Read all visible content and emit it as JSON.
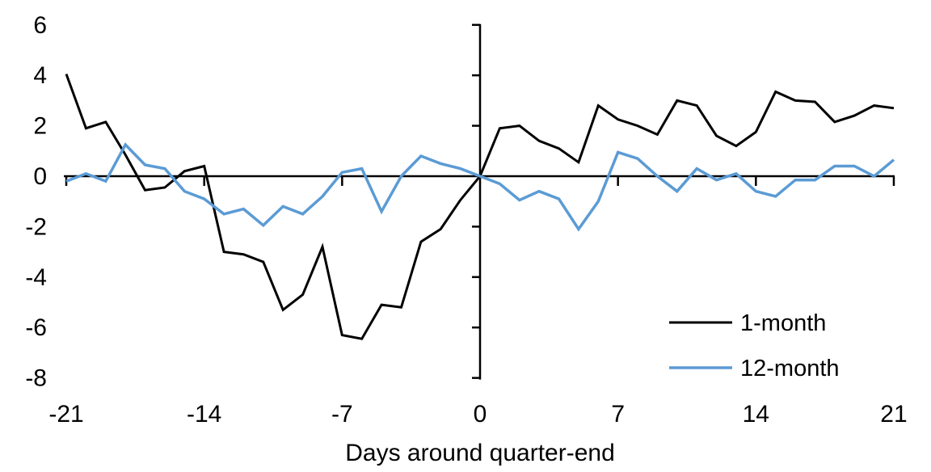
{
  "chart_data": {
    "type": "line",
    "title": "",
    "xlabel": "Days around quarter-end",
    "ylabel": "",
    "xlim": [
      -21,
      21
    ],
    "ylim": [
      -8,
      6
    ],
    "xticks": [
      -21,
      -14,
      -7,
      0,
      7,
      14,
      21
    ],
    "yticks": [
      6,
      4,
      2,
      0,
      -2,
      -4,
      -6,
      -8
    ],
    "grid": false,
    "legend_position": "bottom-right",
    "axis_color": "#000000",
    "x": [
      -21,
      -20,
      -19,
      -18,
      -17,
      -16,
      -15,
      -14,
      -13,
      -12,
      -11,
      -10,
      -9,
      -8,
      -7,
      -6,
      -5,
      -4,
      -3,
      -2,
      -1,
      0,
      1,
      2,
      3,
      4,
      5,
      6,
      7,
      8,
      9,
      10,
      11,
      12,
      13,
      14,
      15,
      16,
      17,
      18,
      19,
      20,
      21
    ],
    "series": [
      {
        "name": "1-month",
        "color": "#000000",
        "values": [
          4.05,
          1.9,
          2.15,
          0.85,
          -0.55,
          -0.45,
          0.2,
          0.4,
          -3.0,
          -3.1,
          -3.4,
          -5.3,
          -4.7,
          -2.8,
          -6.3,
          -6.45,
          -5.1,
          -5.2,
          -2.6,
          -2.1,
          -0.95,
          0.0,
          1.9,
          2.0,
          1.4,
          1.1,
          0.55,
          2.8,
          2.25,
          2.0,
          1.65,
          3.0,
          2.8,
          1.6,
          1.2,
          1.75,
          3.35,
          3.0,
          2.95,
          2.15,
          2.4,
          2.8,
          2.7
        ]
      },
      {
        "name": "12-month",
        "color": "#5B9BD5",
        "values": [
          -0.2,
          0.1,
          -0.2,
          1.25,
          0.45,
          0.3,
          -0.6,
          -0.9,
          -1.5,
          -1.3,
          -1.95,
          -1.2,
          -1.5,
          -0.8,
          0.15,
          0.3,
          -1.4,
          0.0,
          0.8,
          0.5,
          0.3,
          0.0,
          -0.3,
          -0.95,
          -0.6,
          -0.9,
          -2.1,
          -1.0,
          0.95,
          0.7,
          0.0,
          -0.6,
          0.3,
          -0.15,
          0.1,
          -0.6,
          -0.8,
          -0.15,
          -0.15,
          0.4,
          0.4,
          0.0,
          0.65
        ]
      }
    ]
  }
}
